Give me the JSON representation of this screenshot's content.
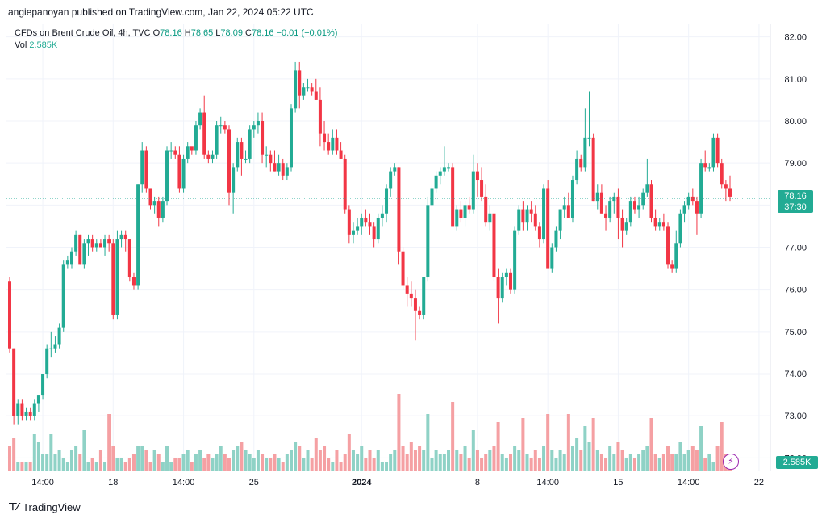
{
  "header": {
    "publisher": "angiepanoyan published on TradingView.com, Jan 22, 2024 05:22 UTC"
  },
  "legend": {
    "symbol": "CFDs on Brent Crude Oil, 4h, TVC",
    "open_label": "O",
    "open": "78.16",
    "high_label": "H",
    "high": "78.65",
    "low_label": "L",
    "low": "78.09",
    "close_label": "C",
    "close": "78.16",
    "change": "−0.01 (−0.01%)",
    "volume_label": "Vol",
    "volume": "2.585K"
  },
  "price_tag": {
    "price": "78.16",
    "countdown": "37:30"
  },
  "volume_tag": "2.585K",
  "footer": {
    "brand": "TradingView"
  },
  "colors": {
    "up": "#22ab94",
    "down": "#f23645",
    "vol_up": "#8fd2c6",
    "vol_down": "#f5a0a3",
    "grid": "#f0f3fa"
  },
  "chart_data": {
    "type": "candlestick",
    "y_axis": {
      "min": 71.7,
      "max": 82.3,
      "ticks": [
        "72.00",
        "73.00",
        "74.00",
        "75.00",
        "76.00",
        "77.00",
        "78.00",
        "79.00",
        "80.00",
        "81.00",
        "82.00"
      ],
      "side": "right"
    },
    "x_axis": {
      "ticks": [
        {
          "label": "14:00",
          "index": 8
        },
        {
          "label": "18",
          "index": 25
        },
        {
          "label": "14:00",
          "index": 42
        },
        {
          "label": "25",
          "index": 59
        },
        {
          "label": "2024",
          "index": 85,
          "bold": true
        },
        {
          "label": "8",
          "index": 113
        },
        {
          "label": "14:00",
          "index": 130
        },
        {
          "label": "15",
          "index": 147
        },
        {
          "label": "14:00",
          "index": 164
        },
        {
          "label": "22",
          "index": 181
        }
      ]
    },
    "last_price": 78.16,
    "candles": [
      [
        76.2,
        76.3,
        74.5,
        74.6,
        0.6
      ],
      [
        74.6,
        74.6,
        72.8,
        73.0,
        0.8
      ],
      [
        73.0,
        73.4,
        72.8,
        73.3,
        0.2
      ],
      [
        73.3,
        73.4,
        72.9,
        73.0,
        0.2
      ],
      [
        73.0,
        73.2,
        72.9,
        73.1,
        0.2
      ],
      [
        73.1,
        73.2,
        72.9,
        73.0,
        0.2
      ],
      [
        73.0,
        73.4,
        72.9,
        73.3,
        0.9
      ],
      [
        73.3,
        73.5,
        73.1,
        73.5,
        0.7
      ],
      [
        73.5,
        74.0,
        73.4,
        74.0,
        0.4
      ],
      [
        74.0,
        74.7,
        73.9,
        74.6,
        0.4
      ],
      [
        74.6,
        75.0,
        74.4,
        74.6,
        0.9
      ],
      [
        74.6,
        74.9,
        74.5,
        74.7,
        0.4
      ],
      [
        74.7,
        75.2,
        74.6,
        75.1,
        0.5
      ],
      [
        75.1,
        76.7,
        75.0,
        76.6,
        0.3
      ],
      [
        76.6,
        76.8,
        76.5,
        76.7,
        0.2
      ],
      [
        76.6,
        77.0,
        76.5,
        76.9,
        0.5
      ],
      [
        76.9,
        77.4,
        76.8,
        77.3,
        0.6
      ],
      [
        77.3,
        77.3,
        76.6,
        76.6,
        0.4
      ],
      [
        76.6,
        77.2,
        76.5,
        77.1,
        1.0
      ],
      [
        77.1,
        77.3,
        76.8,
        77.2,
        0.2
      ],
      [
        77.2,
        77.3,
        76.9,
        77.0,
        0.3
      ],
      [
        77.0,
        77.2,
        76.9,
        77.1,
        0.2
      ],
      [
        77.1,
        77.2,
        77.0,
        77.0,
        0.5
      ],
      [
        77.0,
        77.3,
        76.8,
        77.2,
        0.2
      ],
      [
        77.2,
        77.3,
        76.9,
        77.1,
        1.4
      ],
      [
        77.1,
        77.2,
        75.3,
        75.4,
        0.6
      ],
      [
        75.4,
        77.4,
        75.3,
        77.2,
        0.3
      ],
      [
        77.2,
        77.4,
        77.0,
        77.3,
        0.3
      ],
      [
        77.3,
        77.4,
        76.9,
        77.2,
        0.2
      ],
      [
        77.2,
        77.2,
        76.2,
        76.3,
        0.3
      ],
      [
        76.3,
        76.4,
        76.0,
        76.1,
        0.4
      ],
      [
        76.1,
        78.5,
        76.0,
        78.5,
        0.6
      ],
      [
        78.5,
        79.5,
        78.3,
        79.3,
        0.6
      ],
      [
        79.3,
        79.4,
        78.3,
        78.4,
        0.5
      ],
      [
        78.4,
        78.4,
        77.9,
        78.0,
        0.2
      ],
      [
        78.0,
        78.2,
        77.8,
        78.1,
        0.5
      ],
      [
        78.1,
        78.2,
        77.5,
        77.7,
        0.4
      ],
      [
        77.7,
        78.2,
        77.6,
        78.1,
        0.2
      ],
      [
        78.1,
        79.4,
        78.0,
        79.3,
        0.6
      ],
      [
        79.3,
        79.5,
        79.1,
        79.3,
        0.2
      ],
      [
        79.3,
        79.4,
        79.1,
        79.2,
        0.3
      ],
      [
        79.2,
        79.4,
        78.3,
        78.4,
        0.3
      ],
      [
        78.4,
        79.2,
        78.3,
        79.1,
        0.4
      ],
      [
        79.1,
        79.5,
        79.0,
        79.4,
        0.5
      ],
      [
        79.4,
        79.3,
        79.2,
        79.3,
        0.2
      ],
      [
        79.3,
        80.0,
        79.2,
        79.9,
        0.4
      ],
      [
        79.9,
        80.3,
        79.8,
        80.2,
        0.5
      ],
      [
        80.2,
        80.6,
        79.1,
        79.2,
        0.3
      ],
      [
        79.2,
        79.3,
        79.0,
        79.1,
        0.4
      ],
      [
        79.1,
        79.3,
        79.0,
        79.2,
        0.3
      ],
      [
        79.2,
        80.0,
        79.1,
        79.9,
        0.4
      ],
      [
        79.9,
        80.1,
        79.7,
        79.9,
        0.6
      ],
      [
        79.9,
        80.0,
        79.7,
        79.8,
        0.4
      ],
      [
        79.8,
        79.9,
        78.0,
        78.3,
        0.3
      ],
      [
        78.3,
        79.0,
        77.8,
        78.9,
        0.5
      ],
      [
        78.9,
        79.6,
        78.8,
        79.5,
        0.6
      ],
      [
        79.5,
        79.6,
        78.7,
        79.1,
        0.7
      ],
      [
        79.1,
        79.3,
        79.0,
        79.1,
        0.5
      ],
      [
        79.1,
        79.9,
        79.0,
        79.8,
        0.4
      ],
      [
        79.8,
        80.0,
        79.6,
        79.9,
        0.3
      ],
      [
        79.9,
        80.2,
        79.7,
        80.0,
        0.5
      ],
      [
        80.0,
        80.2,
        79.0,
        79.2,
        0.4
      ],
      [
        79.2,
        79.4,
        78.9,
        79.2,
        0.3
      ],
      [
        79.2,
        79.3,
        78.8,
        79.0,
        0.3
      ],
      [
        79.0,
        79.3,
        78.8,
        78.8,
        0.4
      ],
      [
        78.8,
        79.2,
        78.7,
        79.0,
        0.3
      ],
      [
        79.0,
        79.1,
        78.6,
        78.7,
        0.2
      ],
      [
        78.7,
        79.0,
        78.6,
        78.9,
        0.4
      ],
      [
        78.9,
        80.4,
        78.8,
        80.3,
        0.5
      ],
      [
        80.3,
        81.4,
        80.2,
        81.2,
        0.7
      ],
      [
        81.2,
        81.4,
        80.3,
        80.6,
        0.6
      ],
      [
        80.6,
        80.9,
        80.5,
        80.8,
        0.3
      ],
      [
        80.8,
        81.0,
        80.7,
        80.8,
        0.5
      ],
      [
        80.8,
        80.9,
        80.6,
        80.7,
        0.3
      ],
      [
        80.7,
        81.0,
        80.5,
        80.5,
        0.8
      ],
      [
        80.5,
        80.8,
        79.4,
        79.7,
        0.5
      ],
      [
        79.7,
        80.0,
        79.3,
        79.5,
        0.6
      ],
      [
        79.5,
        79.7,
        79.2,
        79.3,
        0.3
      ],
      [
        79.3,
        79.8,
        79.2,
        79.6,
        0.2
      ],
      [
        79.6,
        79.8,
        79.2,
        79.3,
        0.5
      ],
      [
        79.3,
        79.5,
        79.1,
        79.1,
        0.2
      ],
      [
        79.1,
        79.2,
        77.8,
        77.9,
        0.4
      ],
      [
        77.9,
        78.0,
        77.1,
        77.3,
        0.9
      ],
      [
        77.3,
        77.6,
        77.1,
        77.4,
        0.5
      ],
      [
        77.4,
        77.7,
        77.3,
        77.5,
        0.4
      ],
      [
        77.5,
        77.8,
        77.3,
        77.7,
        0.6
      ],
      [
        77.7,
        77.9,
        77.5,
        77.6,
        0.3
      ],
      [
        77.6,
        77.8,
        77.3,
        77.5,
        0.5
      ],
      [
        77.5,
        77.6,
        77.0,
        77.2,
        0.3
      ],
      [
        77.2,
        77.8,
        77.1,
        77.7,
        0.5
      ],
      [
        77.7,
        78.0,
        77.5,
        77.8,
        0.2
      ],
      [
        77.8,
        78.5,
        77.6,
        78.4,
        0.2
      ],
      [
        78.4,
        78.9,
        78.2,
        78.8,
        0.4
      ],
      [
        78.8,
        79.0,
        78.7,
        78.9,
        0.5
      ],
      [
        78.9,
        78.9,
        76.6,
        76.9,
        1.9
      ],
      [
        76.9,
        77.0,
        76.0,
        76.1,
        0.6
      ],
      [
        76.1,
        76.3,
        75.6,
        75.9,
        0.4
      ],
      [
        75.9,
        76.2,
        75.6,
        75.8,
        0.7
      ],
      [
        75.8,
        76.0,
        74.8,
        75.5,
        0.5
      ],
      [
        75.5,
        75.6,
        75.3,
        75.4,
        0.6
      ],
      [
        75.4,
        76.3,
        75.3,
        76.3,
        0.5
      ],
      [
        76.3,
        78.2,
        76.2,
        78.0,
        1.4
      ],
      [
        78.0,
        78.5,
        77.9,
        78.4,
        0.3
      ],
      [
        78.4,
        78.8,
        78.3,
        78.7,
        0.5
      ],
      [
        78.7,
        78.9,
        78.5,
        78.8,
        0.4
      ],
      [
        78.8,
        79.4,
        78.7,
        78.9,
        0.4
      ],
      [
        78.9,
        79.0,
        78.8,
        78.9,
        0.5
      ],
      [
        78.9,
        79.0,
        77.5,
        77.5,
        1.7
      ],
      [
        77.5,
        78.0,
        77.4,
        77.9,
        0.5
      ],
      [
        77.9,
        78.1,
        77.6,
        77.7,
        0.4
      ],
      [
        77.7,
        78.1,
        77.5,
        78.0,
        0.6
      ],
      [
        78.0,
        78.2,
        77.8,
        77.9,
        0.3
      ],
      [
        77.9,
        79.2,
        77.8,
        78.8,
        1.0
      ],
      [
        78.8,
        79.0,
        78.2,
        78.6,
        0.5
      ],
      [
        78.6,
        78.9,
        78.1,
        78.2,
        0.3
      ],
      [
        78.2,
        78.5,
        77.5,
        77.6,
        0.4
      ],
      [
        77.6,
        78.0,
        77.4,
        77.8,
        0.5
      ],
      [
        77.8,
        77.8,
        76.2,
        76.3,
        0.6
      ],
      [
        76.3,
        76.5,
        75.2,
        75.8,
        1.2
      ],
      [
        75.8,
        76.4,
        75.7,
        76.3,
        0.4
      ],
      [
        76.3,
        76.5,
        76.1,
        76.4,
        0.3
      ],
      [
        76.4,
        76.5,
        75.9,
        76.0,
        0.4
      ],
      [
        76.0,
        77.5,
        75.9,
        77.4,
        0.6
      ],
      [
        77.4,
        78.0,
        77.3,
        77.9,
        0.5
      ],
      [
        77.9,
        78.1,
        77.4,
        77.6,
        1.3
      ],
      [
        77.6,
        78.0,
        77.4,
        77.9,
        0.4
      ],
      [
        77.9,
        78.1,
        77.6,
        77.8,
        0.3
      ],
      [
        77.8,
        78.0,
        77.4,
        77.5,
        0.5
      ],
      [
        77.5,
        77.6,
        77.0,
        77.2,
        0.3
      ],
      [
        77.2,
        78.5,
        77.1,
        78.4,
        0.6
      ],
      [
        78.4,
        78.6,
        76.6,
        76.5,
        1.4
      ],
      [
        76.5,
        77.1,
        76.4,
        77.0,
        0.5
      ],
      [
        77.0,
        77.5,
        76.9,
        77.4,
        0.3
      ],
      [
        77.4,
        77.9,
        77.2,
        77.9,
        0.5
      ],
      [
        77.9,
        78.2,
        77.7,
        78.0,
        0.4
      ],
      [
        78.0,
        78.3,
        77.8,
        77.7,
        1.4
      ],
      [
        77.7,
        78.7,
        77.6,
        78.6,
        0.6
      ],
      [
        78.6,
        79.3,
        78.5,
        79.1,
        0.8
      ],
      [
        79.1,
        79.2,
        78.8,
        78.9,
        0.5
      ],
      [
        78.9,
        80.3,
        78.8,
        79.6,
        1.1
      ],
      [
        79.6,
        80.7,
        79.4,
        79.6,
        0.7
      ],
      [
        79.6,
        79.7,
        78.1,
        78.1,
        1.3
      ],
      [
        78.1,
        78.5,
        77.9,
        78.3,
        0.5
      ],
      [
        78.3,
        78.5,
        77.8,
        77.8,
        0.4
      ],
      [
        77.8,
        78.0,
        77.4,
        77.7,
        0.3
      ],
      [
        77.7,
        78.2,
        77.6,
        78.1,
        0.6
      ],
      [
        78.1,
        78.3,
        77.8,
        78.2,
        0.4
      ],
      [
        78.2,
        78.4,
        77.2,
        77.7,
        0.7
      ],
      [
        77.7,
        77.9,
        77.0,
        77.4,
        0.5
      ],
      [
        77.4,
        77.7,
        77.3,
        77.6,
        0.3
      ],
      [
        77.6,
        78.2,
        77.5,
        78.1,
        0.4
      ],
      [
        78.1,
        78.2,
        77.8,
        77.9,
        0.3
      ],
      [
        77.9,
        78.2,
        77.7,
        78.0,
        0.4
      ],
      [
        78.0,
        78.4,
        77.9,
        78.3,
        0.5
      ],
      [
        78.3,
        79.1,
        78.2,
        78.5,
        0.6
      ],
      [
        78.5,
        78.6,
        77.6,
        77.7,
        1.3
      ],
      [
        77.7,
        77.9,
        77.4,
        77.5,
        0.4
      ],
      [
        77.5,
        77.7,
        77.4,
        77.6,
        0.3
      ],
      [
        77.6,
        77.8,
        77.4,
        77.5,
        0.4
      ],
      [
        77.5,
        77.6,
        76.5,
        76.6,
        0.6
      ],
      [
        76.6,
        76.7,
        76.4,
        76.5,
        0.4
      ],
      [
        76.5,
        77.4,
        76.4,
        77.1,
        0.4
      ],
      [
        77.1,
        77.9,
        77.0,
        77.8,
        0.7
      ],
      [
        77.8,
        78.1,
        77.6,
        78.0,
        0.4
      ],
      [
        78.0,
        78.3,
        77.9,
        78.2,
        0.5
      ],
      [
        78.2,
        78.4,
        78.0,
        78.1,
        0.6
      ],
      [
        78.1,
        78.2,
        77.3,
        77.8,
        0.5
      ],
      [
        77.8,
        79.1,
        77.7,
        79.0,
        1.1
      ],
      [
        79.0,
        79.3,
        78.8,
        78.9,
        0.3
      ],
      [
        78.9,
        79.0,
        78.8,
        78.9,
        0.4
      ],
      [
        78.9,
        79.7,
        78.8,
        79.6,
        0.2
      ],
      [
        79.6,
        79.7,
        78.9,
        79.0,
        0.6
      ],
      [
        79.0,
        79.1,
        78.4,
        78.5,
        1.2
      ],
      [
        78.5,
        78.6,
        78.1,
        78.4,
        0.4
      ],
      [
        78.4,
        78.7,
        78.1,
        78.2,
        0.3
      ]
    ]
  }
}
